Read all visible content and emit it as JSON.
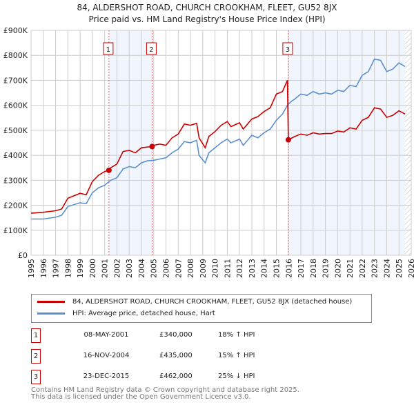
{
  "chart_data": {
    "type": "line",
    "title": "84, ALDERSHOT ROAD, CHURCH CROOKHAM, FLEET, GU52 8JX",
    "subtitle": "Price paid vs. HM Land Registry's House Price Index (HPI)",
    "xlim": [
      1995,
      2026
    ],
    "ylim": [
      0,
      900000
    ],
    "y_ticks": [
      {
        "v": 0,
        "label": "£0"
      },
      {
        "v": 100000,
        "label": "£100K"
      },
      {
        "v": 200000,
        "label": "£200K"
      },
      {
        "v": 300000,
        "label": "£300K"
      },
      {
        "v": 400000,
        "label": "£400K"
      },
      {
        "v": 500000,
        "label": "£500K"
      },
      {
        "v": 600000,
        "label": "£600K"
      },
      {
        "v": 700000,
        "label": "£700K"
      },
      {
        "v": 800000,
        "label": "£800K"
      },
      {
        "v": 900000,
        "label": "£900K"
      }
    ],
    "x_ticks": [
      "1995",
      "1996",
      "1997",
      "1998",
      "1999",
      "2000",
      "2001",
      "2002",
      "2003",
      "2004",
      "2005",
      "2006",
      "2007",
      "2008",
      "2009",
      "2010",
      "2011",
      "2012",
      "2013",
      "2014",
      "2015",
      "2016",
      "2017",
      "2018",
      "2019",
      "2020",
      "2021",
      "2022",
      "2023",
      "2024",
      "2025",
      "2026"
    ],
    "grid": true,
    "series": [
      {
        "name": "84, ALDERSHOT ROAD, CHURCH CROOKHAM, FLEET, GU52 8JX (detached house)",
        "color": "#cc0000",
        "x": [
          1995,
          1996,
          1997,
          1997.5,
          1998,
          1999,
          1999.5,
          2000,
          2000.5,
          2001,
          2001.35,
          2001.5,
          2002,
          2002.5,
          2003,
          2003.5,
          2004,
          2004.87,
          2005,
          2005.5,
          2006,
          2006.5,
          2007,
          2007.5,
          2008,
          2008.5,
          2008.7,
          2009.2,
          2009.5,
          2010,
          2010.5,
          2011,
          2011.3,
          2012,
          2012.3,
          2013,
          2013.5,
          2014,
          2014.5,
          2015,
          2015.5,
          2015.9,
          2015.98,
          2016.5,
          2017,
          2017.5,
          2018,
          2018.5,
          2019,
          2019.5,
          2020,
          2020.5,
          2021,
          2021.5,
          2022,
          2022.5,
          2023,
          2023.5,
          2024,
          2024.5,
          2025,
          2025.5
        ],
        "y": [
          168,
          172,
          178,
          185,
          228,
          248,
          242,
          295,
          320,
          335,
          340,
          350,
          365,
          415,
          420,
          410,
          430,
          435,
          440,
          445,
          440,
          470,
          485,
          525,
          520,
          528,
          470,
          430,
          475,
          495,
          520,
          535,
          515,
          530,
          505,
          545,
          555,
          575,
          590,
          645,
          655,
          700,
          462,
          475,
          485,
          480,
          490,
          485,
          487,
          487,
          497,
          493,
          510,
          505,
          540,
          552,
          590,
          585,
          552,
          560,
          578,
          565
        ]
      },
      {
        "name": "HPI: Average price, detached house, Hart",
        "color": "#5b8fd0",
        "x": [
          1995,
          1996,
          1997,
          1997.5,
          1998,
          1999,
          1999.5,
          2000,
          2000.5,
          2001,
          2001.5,
          2002,
          2002.5,
          2003,
          2003.5,
          2004,
          2004.5,
          2005,
          2005.5,
          2006,
          2006.5,
          2007,
          2007.5,
          2008,
          2008.5,
          2008.7,
          2009.2,
          2009.5,
          2010,
          2010.5,
          2011,
          2011.3,
          2012,
          2012.3,
          2013,
          2013.5,
          2014,
          2014.5,
          2015,
          2015.5,
          2015.9,
          2016.2,
          2016.5,
          2017,
          2017.5,
          2018,
          2018.5,
          2019,
          2019.5,
          2020,
          2020.5,
          2021,
          2021.5,
          2022,
          2022.5,
          2023,
          2023.5,
          2024,
          2024.5,
          2025,
          2025.5
        ],
        "y": [
          145,
          145,
          152,
          160,
          195,
          210,
          207,
          250,
          270,
          280,
          300,
          310,
          345,
          355,
          350,
          370,
          378,
          380,
          385,
          390,
          410,
          425,
          455,
          450,
          460,
          400,
          370,
          410,
          430,
          450,
          465,
          450,
          465,
          440,
          480,
          470,
          490,
          505,
          540,
          565,
          600,
          615,
          625,
          645,
          640,
          655,
          645,
          650,
          645,
          660,
          655,
          680,
          675,
          720,
          735,
          785,
          780,
          735,
          745,
          770,
          755
        ]
      }
    ],
    "y_units": "thousands GBP",
    "sales": [
      {
        "n": "1",
        "x": 2001.35,
        "y": 340
      },
      {
        "n": "2",
        "x": 2004.87,
        "y": 435
      },
      {
        "n": "3",
        "x": 2015.98,
        "y": 462
      }
    ],
    "shaded": [
      [
        2001.35,
        2004.87
      ],
      [
        2015.98,
        2025.5
      ]
    ],
    "hatched_from": 2025.5,
    "legend_position": "below"
  },
  "table": [
    {
      "n": "1",
      "date": "08-MAY-2001",
      "price": "£340,000",
      "hpi": "18% ↑ HPI"
    },
    {
      "n": "2",
      "date": "16-NOV-2004",
      "price": "£435,000",
      "hpi": "15% ↑ HPI"
    },
    {
      "n": "3",
      "date": "23-DEC-2015",
      "price": "£462,000",
      "hpi": "25% ↓ HPI"
    }
  ],
  "footer": [
    "Contains HM Land Registry data © Crown copyright and database right 2025.",
    "This data is licensed under the Open Government Licence v3.0."
  ]
}
